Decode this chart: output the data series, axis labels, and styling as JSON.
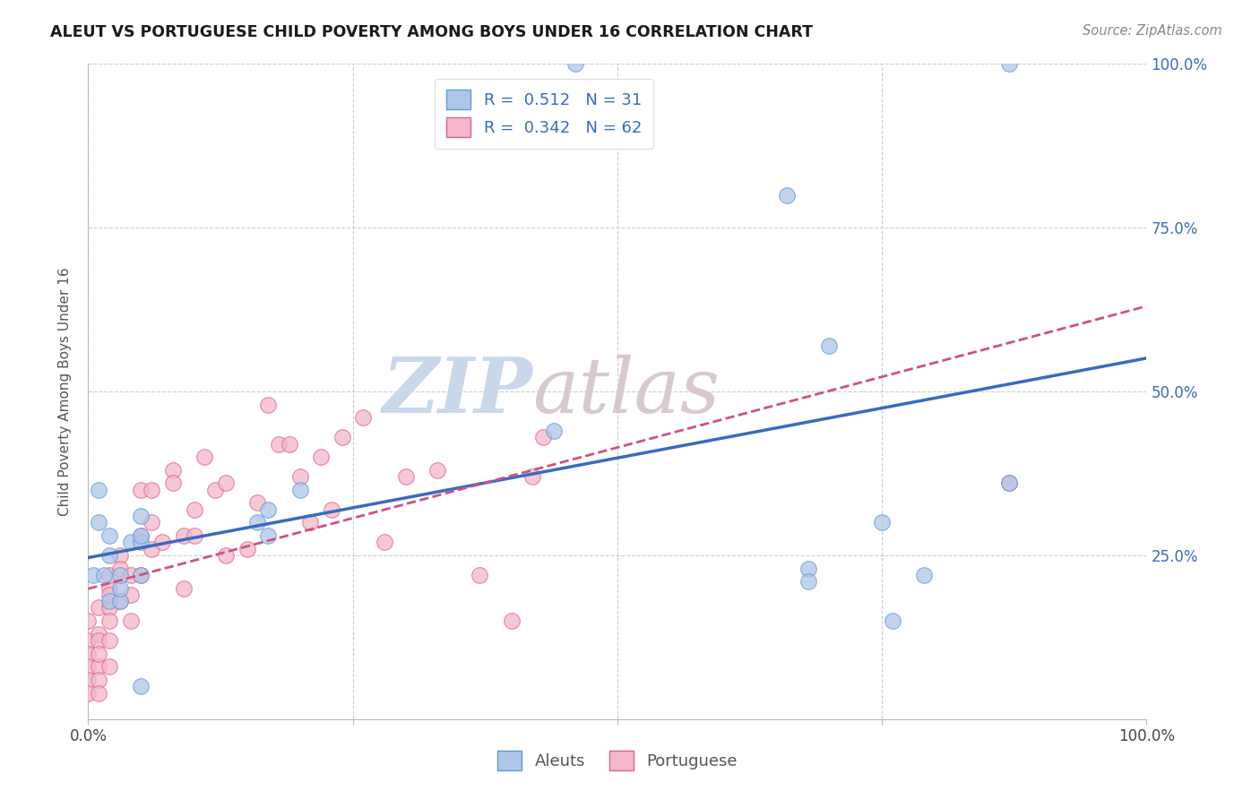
{
  "title": "ALEUT VS PORTUGUESE CHILD POVERTY AMONG BOYS UNDER 16 CORRELATION CHART",
  "source": "Source: ZipAtlas.com",
  "ylabel": "Child Poverty Among Boys Under 16",
  "xlabel": "",
  "aleuts_R": 0.512,
  "aleuts_N": 31,
  "portuguese_R": 0.342,
  "portuguese_N": 62,
  "aleut_color": "#aec6e8",
  "aleut_edge": "#5b9bd5",
  "portuguese_color": "#f4b8c8",
  "portuguese_edge": "#e06090",
  "trend_aleut_color": "#3a6abf",
  "trend_portuguese_color": "#d05080",
  "watermark_zip_color": "#c8d8ea",
  "watermark_atlas_color": "#d8c8d0",
  "background_color": "#ffffff",
  "grid_color": "#cccccc",
  "xlim": [
    0,
    1
  ],
  "ylim": [
    0,
    1
  ],
  "xticks": [
    0,
    0.25,
    0.5,
    0.75,
    1.0
  ],
  "yticks": [
    0,
    0.25,
    0.5,
    0.75,
    1.0
  ],
  "xticklabels": [
    "0.0%",
    "",
    "",
    "",
    "100.0%"
  ],
  "yticklabels_right": [
    "",
    "25.0%",
    "50.0%",
    "75.0%",
    "100.0%"
  ],
  "aleuts_x": [
    0.005,
    0.01,
    0.01,
    0.015,
    0.02,
    0.02,
    0.02,
    0.03,
    0.03,
    0.03,
    0.04,
    0.05,
    0.05,
    0.05,
    0.05,
    0.05,
    0.16,
    0.17,
    0.17,
    0.2,
    0.44,
    0.46,
    0.66,
    0.68,
    0.68,
    0.7,
    0.75,
    0.76,
    0.79,
    0.87,
    0.87
  ],
  "aleuts_y": [
    0.22,
    0.3,
    0.35,
    0.22,
    0.25,
    0.28,
    0.18,
    0.18,
    0.2,
    0.22,
    0.27,
    0.31,
    0.27,
    0.28,
    0.05,
    0.22,
    0.3,
    0.32,
    0.28,
    0.35,
    0.44,
    1.0,
    0.8,
    0.23,
    0.21,
    0.57,
    0.3,
    0.15,
    0.22,
    0.36,
    1.0
  ],
  "portuguese_x": [
    0.0,
    0.0,
    0.0,
    0.0,
    0.0,
    0.0,
    0.01,
    0.01,
    0.01,
    0.01,
    0.01,
    0.01,
    0.01,
    0.02,
    0.02,
    0.02,
    0.02,
    0.02,
    0.02,
    0.02,
    0.03,
    0.03,
    0.03,
    0.04,
    0.04,
    0.04,
    0.05,
    0.05,
    0.05,
    0.06,
    0.06,
    0.06,
    0.07,
    0.08,
    0.08,
    0.09,
    0.09,
    0.1,
    0.1,
    0.11,
    0.12,
    0.13,
    0.13,
    0.15,
    0.16,
    0.17,
    0.18,
    0.19,
    0.2,
    0.21,
    0.22,
    0.23,
    0.24,
    0.26,
    0.28,
    0.3,
    0.33,
    0.37,
    0.4,
    0.42,
    0.43,
    0.87
  ],
  "portuguese_y": [
    0.15,
    0.12,
    0.1,
    0.08,
    0.06,
    0.04,
    0.13,
    0.17,
    0.12,
    0.08,
    0.1,
    0.06,
    0.04,
    0.17,
    0.2,
    0.15,
    0.22,
    0.19,
    0.12,
    0.08,
    0.25,
    0.23,
    0.18,
    0.22,
    0.19,
    0.15,
    0.22,
    0.28,
    0.35,
    0.26,
    0.35,
    0.3,
    0.27,
    0.38,
    0.36,
    0.28,
    0.2,
    0.32,
    0.28,
    0.4,
    0.35,
    0.36,
    0.25,
    0.26,
    0.33,
    0.48,
    0.42,
    0.42,
    0.37,
    0.3,
    0.4,
    0.32,
    0.43,
    0.46,
    0.27,
    0.37,
    0.38,
    0.22,
    0.15,
    0.37,
    0.43,
    0.36
  ]
}
